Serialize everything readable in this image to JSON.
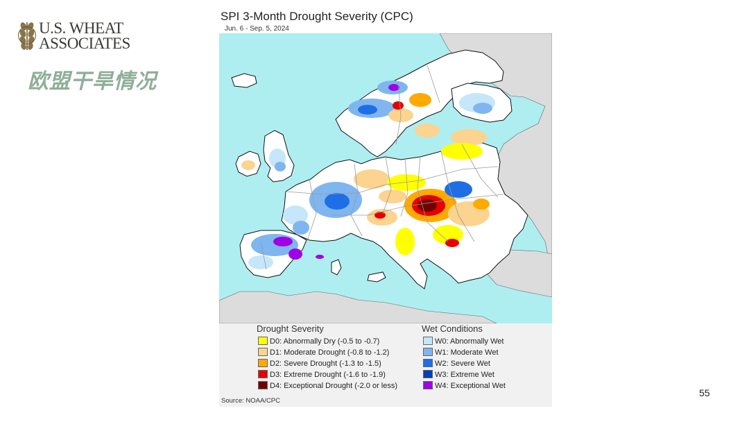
{
  "logo": {
    "line1": "U.S. WHEAT",
    "line2": "ASSOCIATES"
  },
  "slide": {
    "title": "欧盟干旱情况",
    "page_number": "55"
  },
  "map": {
    "title": "SPI 3-Month Drought Severity (CPC)",
    "subtitle": "Jun. 6 - Sep. 5, 2024",
    "region": "Europe",
    "colors": {
      "sea": "#aeeef0",
      "land": "#ffffff",
      "outside": "#dcdcdc",
      "border": "#9a9a9a",
      "coast": "#111111"
    }
  },
  "legend": {
    "drought_heading": "Drought Severity",
    "wet_heading": "Wet Conditions",
    "drought_items": [
      {
        "code": "D0",
        "label": "D0: Abnormally Dry (-0.5 to -0.7)",
        "color": "#ffff00"
      },
      {
        "code": "D1",
        "label": "D1: Moderate Drought (-0.8 to -1.2)",
        "color": "#fcd38f"
      },
      {
        "code": "D2",
        "label": "D2: Severe Drought (-1.3 to -1.5)",
        "color": "#ffaa00"
      },
      {
        "code": "D3",
        "label": "D3: Extreme Drought (-1.6 to -1.9)",
        "color": "#e60000"
      },
      {
        "code": "D4",
        "label": "D4: Exceptional Drought (-2.0 or less)",
        "color": "#730000"
      }
    ],
    "wet_items": [
      {
        "code": "W0",
        "label": "W0: Abnormally Wet",
        "color": "#c6e6fa"
      },
      {
        "code": "W1",
        "label": "W1: Moderate Wet",
        "color": "#7fb6f0"
      },
      {
        "code": "W2",
        "label": "W2: Severe Wet",
        "color": "#1e6ee6"
      },
      {
        "code": "W3",
        "label": "W3: Extreme Wet",
        "color": "#0a3cb4"
      },
      {
        "code": "W4",
        "label": "W4: Exceptional Wet",
        "color": "#a000e6"
      }
    ],
    "source": "Source: NOAA/CPC"
  }
}
